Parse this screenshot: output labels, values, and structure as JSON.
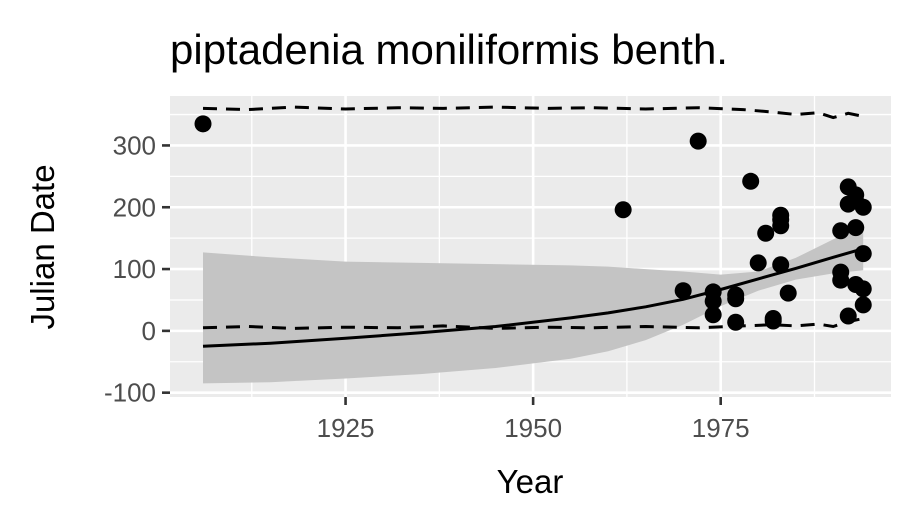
{
  "chart_data": {
    "type": "scatter",
    "title": "piptadenia moniliformis benth.",
    "xlabel": "Year",
    "ylabel": "Julian Date",
    "xlim": [
      1901.6,
      1997.7
    ],
    "ylim": [
      -107,
      380
    ],
    "x_ticks": [
      1925,
      1950,
      1975
    ],
    "x_tick_labels": [
      "1925",
      "1950",
      "1975"
    ],
    "y_ticks": [
      -100,
      0,
      100,
      200,
      300
    ],
    "y_tick_labels": [
      "-100",
      "0",
      "100",
      "200",
      "300"
    ],
    "grid": true,
    "legend": "none",
    "colors": {
      "panel": "#ebebeb",
      "grid": "#ffffff",
      "points": "#000000",
      "ribbon": "#c4c4c4",
      "fit": "#000000"
    },
    "points": [
      {
        "x": 1906,
        "y": 335
      },
      {
        "x": 1962,
        "y": 196
      },
      {
        "x": 1970,
        "y": 65
      },
      {
        "x": 1972,
        "y": 307
      },
      {
        "x": 1974,
        "y": 63
      },
      {
        "x": 1974,
        "y": 48
      },
      {
        "x": 1974,
        "y": 26
      },
      {
        "x": 1977,
        "y": 58
      },
      {
        "x": 1977,
        "y": 52
      },
      {
        "x": 1977,
        "y": 14
      },
      {
        "x": 1979,
        "y": 242
      },
      {
        "x": 1980,
        "y": 110
      },
      {
        "x": 1981,
        "y": 158
      },
      {
        "x": 1982,
        "y": 20
      },
      {
        "x": 1982,
        "y": 16
      },
      {
        "x": 1983,
        "y": 187
      },
      {
        "x": 1983,
        "y": 180
      },
      {
        "x": 1983,
        "y": 170
      },
      {
        "x": 1983,
        "y": 107
      },
      {
        "x": 1984,
        "y": 61
      },
      {
        "x": 1991,
        "y": 162
      },
      {
        "x": 1991,
        "y": 95
      },
      {
        "x": 1991,
        "y": 82
      },
      {
        "x": 1992,
        "y": 233
      },
      {
        "x": 1992,
        "y": 205
      },
      {
        "x": 1992,
        "y": 24
      },
      {
        "x": 1993,
        "y": 220
      },
      {
        "x": 1993,
        "y": 210
      },
      {
        "x": 1993,
        "y": 167
      },
      {
        "x": 1993,
        "y": 75
      },
      {
        "x": 1994,
        "y": 200
      },
      {
        "x": 1994,
        "y": 125
      },
      {
        "x": 1994,
        "y": 68
      },
      {
        "x": 1994,
        "y": 42
      }
    ],
    "fit_line": {
      "x": [
        1906,
        1915,
        1925,
        1935,
        1945,
        1955,
        1960,
        1965,
        1970,
        1975,
        1980,
        1985,
        1990,
        1994
      ],
      "y": [
        -25,
        -20,
        -12,
        -3,
        7,
        21,
        29,
        39,
        51,
        67,
        84,
        101,
        119,
        133
      ]
    },
    "ribbon": {
      "x": [
        1906,
        1915,
        1925,
        1935,
        1945,
        1955,
        1960,
        1965,
        1970,
        1975,
        1980,
        1985,
        1990,
        1994
      ],
      "upper": [
        127,
        119,
        112,
        110,
        108,
        106,
        104,
        100,
        96,
        91,
        96,
        118,
        148,
        172
      ],
      "lower": [
        -85,
        -83,
        -77,
        -70,
        -60,
        -45,
        -33,
        -15,
        10,
        40,
        65,
        83,
        93,
        98
      ]
    },
    "upper_dashed": {
      "x": [
        1906,
        1912,
        1918,
        1925,
        1932,
        1938,
        1945,
        1952,
        1958,
        1965,
        1972,
        1978,
        1982,
        1985,
        1988,
        1990,
        1992,
        1994
      ],
      "y": [
        360,
        358,
        362,
        359,
        361,
        360,
        362,
        360,
        361,
        359,
        361,
        358,
        354,
        350,
        353,
        345,
        352,
        347
      ]
    },
    "lower_dashed": {
      "x": [
        1906,
        1912,
        1918,
        1925,
        1932,
        1938,
        1945,
        1952,
        1958,
        1965,
        1972,
        1978,
        1982,
        1985,
        1988,
        1990,
        1992,
        1994
      ],
      "y": [
        5,
        7,
        4,
        6,
        5,
        8,
        4,
        6,
        5,
        7,
        5,
        8,
        10,
        8,
        11,
        7,
        15,
        20
      ]
    }
  }
}
